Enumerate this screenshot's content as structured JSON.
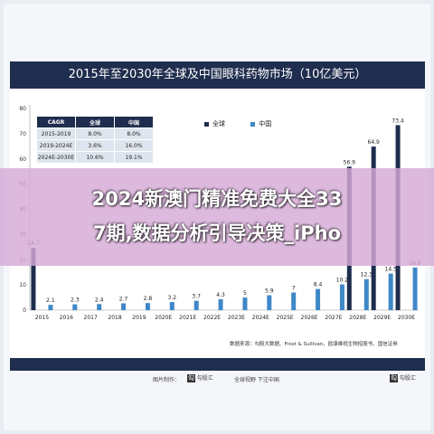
{
  "header": {
    "title": "2015年至2030年全球及中国眼科药物市场（10亿美元）"
  },
  "cagr_table": {
    "headers": [
      "CAGR",
      "全球",
      "中国"
    ],
    "rows": [
      [
        "2015-2019",
        "8.0%",
        "8.0%"
      ],
      [
        "2019-2024E",
        "3.6%",
        "16.0%"
      ],
      [
        "2024E-2030E",
        "10.6%",
        "19.1%"
      ]
    ]
  },
  "legend": {
    "global": "全球",
    "china": "中国"
  },
  "colors": {
    "global": "#1f2d4e",
    "china": "#3f88c8",
    "header": "#1f2d4e"
  },
  "source": "数据来源：勾股大数据、Frost & Sullivan、欧康维视生物招股书、国信证券",
  "banner": {
    "line1": "2024新澳门精准免费大全33",
    "line2": "7期,数据分析引导决策_iPho"
  },
  "footer_bar": {
    "left": "图片制作：",
    "brand": "勾股汇",
    "middle": "全球视野 下注中国"
  },
  "chart_data": {
    "type": "bar",
    "categories": [
      "2015",
      "2016",
      "2017",
      "2018",
      "2019",
      "2020E",
      "2021E",
      "2022E",
      "2023E",
      "2024E",
      "2025E",
      "2026E",
      "2027E",
      "2028E",
      "2029E",
      "2030E"
    ],
    "series": [
      {
        "name": "全球",
        "values": [
          24.7,
          null,
          null,
          null,
          null,
          null,
          null,
          null,
          null,
          null,
          null,
          null,
          null,
          56.9,
          64.9,
          73.4
        ]
      },
      {
        "name": "中国",
        "values": [
          2.1,
          2.3,
          2.4,
          2.7,
          2.8,
          3.2,
          3.7,
          4.3,
          5.0,
          5.9,
          7.0,
          8.4,
          10.2,
          12.3,
          14.5,
          16.9
        ]
      }
    ],
    "ylim": [
      0,
      80
    ],
    "yticks": [
      0,
      10,
      20,
      30,
      40,
      50,
      60,
      70,
      80
    ],
    "grid": false,
    "legend_position": "top"
  }
}
